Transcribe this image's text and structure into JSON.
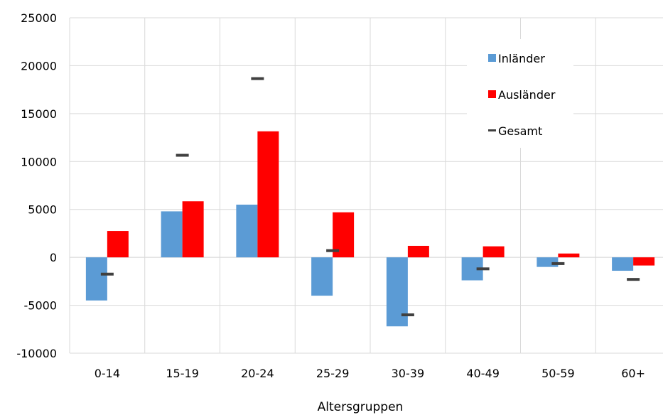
{
  "chart_data": {
    "type": "bar",
    "title": "",
    "xlabel": "Altersgruppen",
    "ylabel": "",
    "ylim": [
      -10000,
      25000
    ],
    "yticks": [
      -10000,
      -5000,
      0,
      5000,
      10000,
      15000,
      20000,
      25000
    ],
    "ytick_labels": [
      "-10000",
      "-5000",
      "0",
      "5000",
      "10000",
      "15000",
      "20000",
      "25000"
    ],
    "grid": true,
    "legend_position": "top-right",
    "categories": [
      "0-14",
      "15-19",
      "20-24",
      "25-29",
      "30-39",
      "40-49",
      "50-59",
      "60+"
    ],
    "series": [
      {
        "name": "Inländer",
        "kind": "bar",
        "color": "#5B9BD5",
        "values": [
          -4500,
          4800,
          5500,
          -4000,
          -7200,
          -2400,
          -1000,
          -1400
        ]
      },
      {
        "name": "Ausländer",
        "kind": "bar",
        "color": "#FF0000",
        "values": [
          2750,
          5850,
          13150,
          4700,
          1200,
          1150,
          400,
          -850
        ]
      },
      {
        "name": "Gesamt",
        "kind": "marker",
        "color": "#404040",
        "values": [
          -1750,
          10650,
          18650,
          700,
          -6000,
          -1200,
          -650,
          -2300
        ]
      }
    ]
  }
}
